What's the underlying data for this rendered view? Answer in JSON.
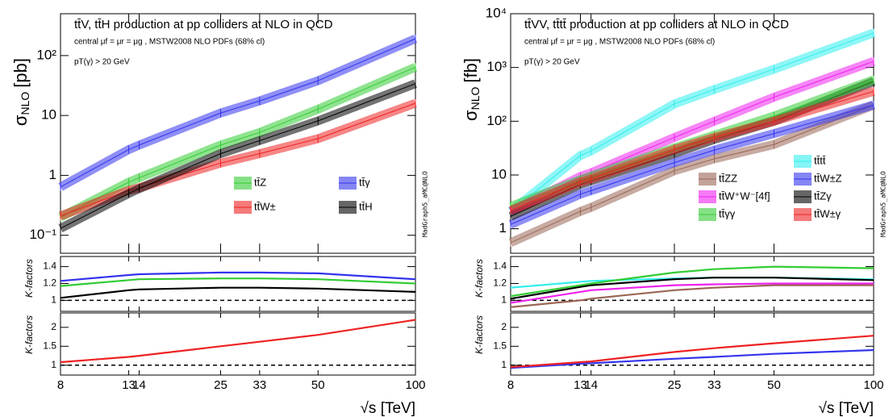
{
  "chart_data": [
    {
      "type": "line",
      "title": "tt̄V, tt̄H production at pp colliders at NLO in QCD",
      "subtitle": "central μf = μr = μg , MSTW2008 NLO PDFs (68% cl)",
      "note": "pT(γ) > 20 GeV",
      "annotation": "MadGraph5_aMC@NLO",
      "ylabel": {
        "symbol": "σ",
        "subscript": "NLO",
        "unit": "[pb]"
      },
      "log_x": true,
      "log_y": true,
      "x": [
        8,
        13,
        14,
        25,
        33,
        50,
        100
      ],
      "xlim": [
        8,
        100
      ],
      "xticks": [
        8,
        13,
        14,
        25,
        33,
        50,
        100
      ],
      "ylim": [
        0.05,
        500
      ],
      "yticks": [
        {
          "value": 0.1,
          "label": "10⁻¹"
        },
        1,
        10,
        {
          "value": 100,
          "label": "10²"
        }
      ],
      "series": [
        {
          "name": "tt̄Z",
          "color": "#33cc33",
          "values": [
            0.2,
            0.77,
            0.91,
            3.2,
            5.2,
            12.7,
            64
          ]
        },
        {
          "name": "tt̄γ",
          "color": "#3333ee",
          "values": [
            0.64,
            2.7,
            3.2,
            11,
            17.5,
            38,
            191
          ]
        },
        {
          "name": "tt̄W±",
          "color": "#ee2222",
          "values": [
            0.21,
            0.56,
            0.62,
            1.6,
            2.3,
            4.1,
            16
          ]
        },
        {
          "name": "tt̄H",
          "color": "#000000",
          "values": [
            0.13,
            0.5,
            0.6,
            2.3,
            3.8,
            8.1,
            34
          ]
        }
      ]
    },
    {
      "type": "line",
      "ylabel": "K-factors",
      "log_x": true,
      "x": [
        8,
        13,
        14,
        25,
        33,
        50,
        100
      ],
      "xlim": [
        8,
        100
      ],
      "xticks": [
        8,
        13,
        14,
        25,
        33,
        50,
        100
      ],
      "ylim": [
        0.87,
        1.52
      ],
      "yticks": [
        1,
        1.2,
        1.4
      ],
      "reference_line": 1,
      "series": [
        {
          "color": "#33cc33",
          "values": [
            1.17,
            1.24,
            1.25,
            1.26,
            1.26,
            1.25,
            1.2
          ]
        },
        {
          "color": "#3333ee",
          "values": [
            1.23,
            1.3,
            1.31,
            1.33,
            1.33,
            1.32,
            1.25
          ]
        },
        {
          "color": "#000000",
          "values": [
            1.03,
            1.12,
            1.13,
            1.15,
            1.15,
            1.14,
            1.1
          ]
        }
      ]
    },
    {
      "type": "line",
      "ylabel": "K-factors",
      "xlabel": "√s [TeV]",
      "log_x": true,
      "x": [
        8,
        13,
        14,
        25,
        33,
        50,
        100
      ],
      "xlim": [
        8,
        100
      ],
      "xticks": [
        8,
        13,
        14,
        25,
        33,
        50,
        100
      ],
      "ylim": [
        0.74,
        2.38
      ],
      "yticks": [
        1,
        1.5,
        2
      ],
      "reference_line": 1,
      "series": [
        {
          "color": "#ee2222",
          "values": [
            1.08,
            1.22,
            1.25,
            1.5,
            1.62,
            1.8,
            2.2
          ]
        }
      ]
    },
    {
      "type": "line",
      "title": "tt̄VV, tt̄tt̄ production at pp colliders at NLO in QCD",
      "subtitle": "central μf = μr = μg , MSTW2008 NLO PDFs (68% cl)",
      "note": "pT(γ) > 20 GeV",
      "annotation": "MadGraph5_aMC@NLO",
      "ylabel": {
        "symbol": "σ",
        "subscript": "NLO",
        "unit": "[fb]"
      },
      "log_x": true,
      "log_y": true,
      "x": [
        8,
        13,
        14,
        25,
        33,
        50,
        100
      ],
      "xlim": [
        8,
        100
      ],
      "xticks": [
        8,
        13,
        14,
        25,
        33,
        50,
        100
      ],
      "ylim": [
        0.35,
        10000
      ],
      "yticks": [
        1,
        10,
        {
          "value": 100,
          "label": "10²"
        },
        {
          "value": 1000,
          "label": "10³"
        },
        {
          "value": 10000,
          "label": "10⁴"
        }
      ],
      "series": [
        {
          "name": "tt̄tt̄",
          "color": "#33eeee",
          "values": [
            2.1,
            23,
            28,
            210,
            390,
            930,
            4400
          ]
        },
        {
          "name": "tt̄ZZ",
          "color": "#996655",
          "values": [
            0.55,
            2.1,
            2.5,
            12,
            20,
            37,
            200
          ]
        },
        {
          "name": "tt̄W±Z",
          "color": "#3333ee",
          "values": [
            1.2,
            4.4,
            5.1,
            17,
            29,
            59,
            200
          ]
        },
        {
          "name": "tt̄W⁺W⁻[4f]",
          "color": "#ee22ee",
          "values": [
            2.1,
            9.4,
            11,
            50,
            100,
            280,
            1300
          ]
        },
        {
          "name": "tt̄Zγ",
          "color": "#000000",
          "values": [
            1.7,
            6.7,
            7.8,
            25,
            46,
            100,
            550
          ]
        },
        {
          "name": "tt̄γγ",
          "color": "#33cc33",
          "values": [
            2.6,
            8.2,
            9.5,
            32,
            55,
            125,
            590
          ]
        },
        {
          "name": "tt̄W±γ",
          "color": "#ee2222",
          "values": [
            2.2,
            7.4,
            8.5,
            30,
            50,
            100,
            360
          ]
        }
      ]
    },
    {
      "type": "line",
      "ylabel": "K-factors",
      "log_x": true,
      "x": [
        8,
        13,
        14,
        25,
        33,
        50,
        100
      ],
      "xlim": [
        8,
        100
      ],
      "xticks": [
        8,
        13,
        14,
        25,
        33,
        50,
        100
      ],
      "ylim": [
        0.87,
        1.52
      ],
      "yticks": [
        1,
        1.2,
        1.4
      ],
      "reference_line": 1,
      "series": [
        {
          "color": "#33eeee",
          "values": [
            1.15,
            1.22,
            1.23,
            1.26,
            1.27,
            1.27,
            1.25
          ]
        },
        {
          "color": "#996655",
          "values": [
            0.92,
            1.0,
            1.02,
            1.12,
            1.15,
            1.18,
            1.18
          ]
        },
        {
          "color": "#ee22ee",
          "values": [
            0.97,
            1.1,
            1.12,
            1.18,
            1.19,
            1.2,
            1.2
          ]
        },
        {
          "color": "#000000",
          "values": [
            1.02,
            1.16,
            1.18,
            1.25,
            1.27,
            1.27,
            1.24
          ]
        },
        {
          "color": "#33cc33",
          "values": [
            1.05,
            1.18,
            1.2,
            1.33,
            1.37,
            1.4,
            1.38
          ]
        }
      ]
    },
    {
      "type": "line",
      "ylabel": "K-factors",
      "xlabel": "√s [TeV]",
      "log_x": true,
      "x": [
        8,
        13,
        14,
        25,
        33,
        50,
        100
      ],
      "xlim": [
        8,
        100
      ],
      "xticks": [
        8,
        13,
        14,
        25,
        33,
        50,
        100
      ],
      "ylim": [
        0.74,
        2.38
      ],
      "yticks": [
        1,
        1.5,
        2
      ],
      "reference_line": 1,
      "series": [
        {
          "color": "#3333ee",
          "values": [
            0.93,
            1.04,
            1.05,
            1.17,
            1.22,
            1.3,
            1.4
          ]
        },
        {
          "color": "#ee2222",
          "values": [
            0.95,
            1.08,
            1.1,
            1.35,
            1.45,
            1.58,
            1.78
          ]
        }
      ]
    }
  ]
}
